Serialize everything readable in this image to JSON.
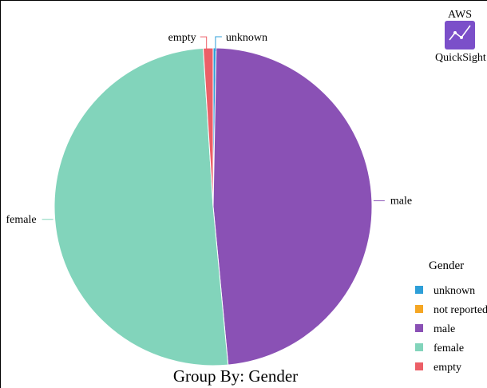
{
  "logo": {
    "top_text": "AWS",
    "bottom_text": "QuickSight",
    "color": "#7B4FC9"
  },
  "chart_data": {
    "type": "pie",
    "title": "Group By: Gender",
    "start_angle_deg": 0,
    "direction": "clockwise",
    "slices": [
      {
        "name": "unknown",
        "value": 0.3,
        "color": "#2E9FD8"
      },
      {
        "name": "male",
        "value": 48.2,
        "color": "#8A51B5"
      },
      {
        "name": "female",
        "value": 50.5,
        "color": "#82D4BB"
      },
      {
        "name": "empty",
        "value": 1.0,
        "color": "#EC5F67"
      }
    ],
    "legend": {
      "title": "Gender",
      "position": "right",
      "entries": [
        {
          "label": "unknown",
          "color": "#2E9FD8"
        },
        {
          "label": "not reported",
          "color": "#F5A623"
        },
        {
          "label": "male",
          "color": "#8A51B5"
        },
        {
          "label": "female",
          "color": "#82D4BB"
        },
        {
          "label": "empty",
          "color": "#EC5F67"
        }
      ]
    }
  }
}
